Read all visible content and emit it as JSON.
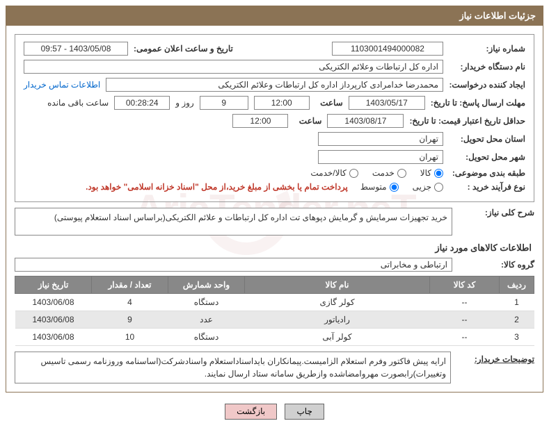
{
  "header": {
    "title": "جزئیات اطلاعات نیاز"
  },
  "fields": {
    "need_no_label": "شماره نیاز:",
    "need_no": "1103001494000082",
    "announce_label": "تاریخ و ساعت اعلان عمومی:",
    "announce_val": "1403/05/08 - 09:57",
    "buyer_dev_label": "نام دستگاه خریدار:",
    "buyer_dev": "اداره کل ارتباطات وعلائم الکتریکی",
    "requester_label": "ایجاد کننده درخواست:",
    "requester": "محمدرضا خدامرادی کارپرداز اداره کل ارتباطات وعلائم الکتریکی",
    "contact_link": "اطلاعات تماس خریدار",
    "deadline_reply_label": "مهلت ارسال پاسخ: تا تاریخ:",
    "deadline_reply_date": "1403/05/17",
    "time_label": "ساعت",
    "deadline_reply_time": "12:00",
    "days_val": "9",
    "days_label": "روز و",
    "remain_time": "00:28:24",
    "remain_label": "ساعت باقی مانده",
    "min_valid_label": "حداقل تاریخ اعتبار قیمت: تا تاریخ:",
    "min_valid_date": "1403/08/17",
    "min_valid_time": "12:00",
    "province_label": "استان محل تحویل:",
    "province": "تهران",
    "city_label": "شهر محل تحویل:",
    "city": "تهران",
    "category_label": "طبقه بندی موضوعی:",
    "cat_goods": "کالا",
    "cat_service": "خدمت",
    "cat_both": "کالا/خدمت",
    "process_label": "نوع فرآیند خرید :",
    "proc_small": "جزیی",
    "proc_medium": "متوسط",
    "treasury_note": "پرداخت تمام یا بخشی از مبلغ خرید،از محل \"اسناد خزانه اسلامی\" خواهد بود.",
    "desc_label": "شرح کلی نیاز:",
    "desc_text": "خرید تجهیزات سرمایش و گرمایش دپوهای تت اداره کل ارتباطات و علائم الکتریکی(براساس اسناد استعلام پیوستی)",
    "goods_section": "اطلاعات کالاهای مورد نیاز",
    "group_label": "گروه کالا:",
    "group_val": "ارتباطی و مخابراتی",
    "buyer_notes_label": "توضیحات خریدار:",
    "buyer_notes": "ارایه پیش فاکتور وفرم استعلام الزامیست.پیمانکاران بایداسناداستعلام واسنادشرکت(اساسنامه وروزنامه رسمی تاسیس وتغییرات)رابصورت مهروامضاشده وازطریق سامانه ستاد ارسال نمایند."
  },
  "table": {
    "headers": {
      "row": "ردیف",
      "code": "کد کالا",
      "name": "نام کالا",
      "unit": "واحد شمارش",
      "qty": "تعداد / مقدار",
      "date": "تاریخ نیاز"
    },
    "rows": [
      {
        "n": "1",
        "code": "--",
        "name": "کولر گازی",
        "unit": "دستگاه",
        "qty": "4",
        "date": "1403/06/08"
      },
      {
        "n": "2",
        "code": "--",
        "name": "رادیاتور",
        "unit": "عدد",
        "qty": "9",
        "date": "1403/06/08"
      },
      {
        "n": "3",
        "code": "--",
        "name": "کولر آبی",
        "unit": "دستگاه",
        "qty": "10",
        "date": "1403/06/08"
      }
    ]
  },
  "buttons": {
    "print": "چاپ",
    "back": "بازگشت"
  },
  "watermark": "AriaTender.neT"
}
